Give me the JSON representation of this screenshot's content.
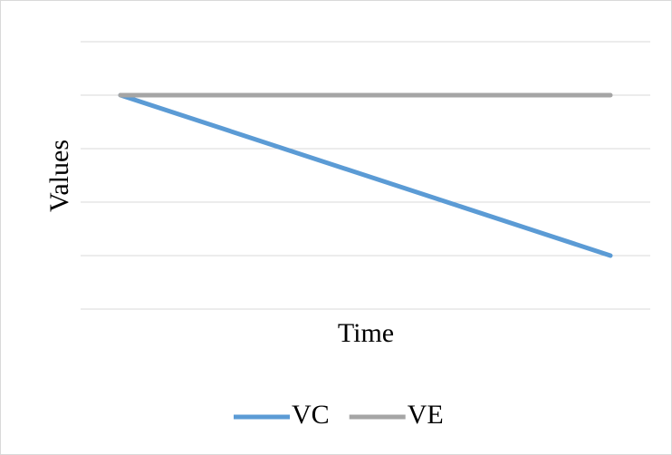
{
  "chart_data": {
    "type": "line",
    "x_label": "Time",
    "y_label": "Values",
    "categories": [
      null,
      null
    ],
    "series": [
      {
        "name": "VC",
        "color": "#5b9bd5",
        "values": [
          4,
          1
        ]
      },
      {
        "name": "VE",
        "color": "#a5a5a5",
        "values": [
          4,
          4
        ]
      }
    ],
    "ylim": [
      0,
      5
    ],
    "yticks": [
      0,
      1,
      2,
      3,
      4,
      5
    ],
    "grid": true,
    "legend": "bottom"
  }
}
